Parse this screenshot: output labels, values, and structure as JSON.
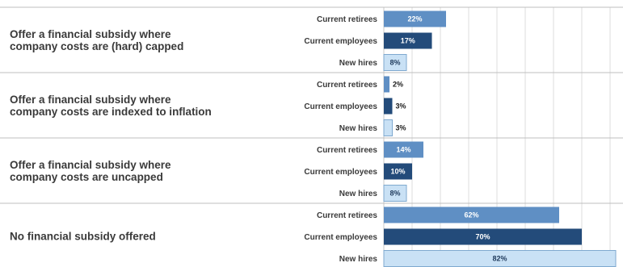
{
  "chart_data": {
    "type": "bar",
    "orientation": "horizontal",
    "grid": true,
    "xlim": [
      0,
      100
    ],
    "groups": [
      {
        "label_lines": [
          "Offer a financial subsidy where",
          "company costs are (hard) capped"
        ],
        "bars": [
          {
            "name": "Current retirees",
            "value": 22,
            "label": "22%"
          },
          {
            "name": "Current employees",
            "value": 17,
            "label": "17%"
          },
          {
            "name": "New hires",
            "value": 8,
            "label": "8%"
          }
        ]
      },
      {
        "label_lines": [
          "Offer a financial subsidy where",
          "company costs are indexed to inflation"
        ],
        "bars": [
          {
            "name": "Current retirees",
            "value": 2,
            "label": "2%"
          },
          {
            "name": "Current employees",
            "value": 3,
            "label": "3%"
          },
          {
            "name": "New hires",
            "value": 3,
            "label": "3%"
          }
        ]
      },
      {
        "label_lines": [
          "Offer a financial subsidy where",
          "company costs are uncapped"
        ],
        "bars": [
          {
            "name": "Current retirees",
            "value": 14,
            "label": "14%"
          },
          {
            "name": "Current employees",
            "value": 10,
            "label": "10%"
          },
          {
            "name": "New hires",
            "value": 8,
            "label": "8%"
          }
        ]
      },
      {
        "label_lines": [
          "No financial subsidy offered"
        ],
        "bars": [
          {
            "name": "Current retirees",
            "value": 62,
            "label": "62%"
          },
          {
            "name": "Current employees",
            "value": 70,
            "label": "70%"
          },
          {
            "name": "New hires",
            "value": 82,
            "label": "82%"
          }
        ]
      }
    ],
    "colors": {
      "Current retirees": "#5f8fc4",
      "Current employees": "#234b7a",
      "New hires": "#c9e1f5",
      "grid": "#dddddd",
      "separator": "#bfbfbf"
    }
  }
}
